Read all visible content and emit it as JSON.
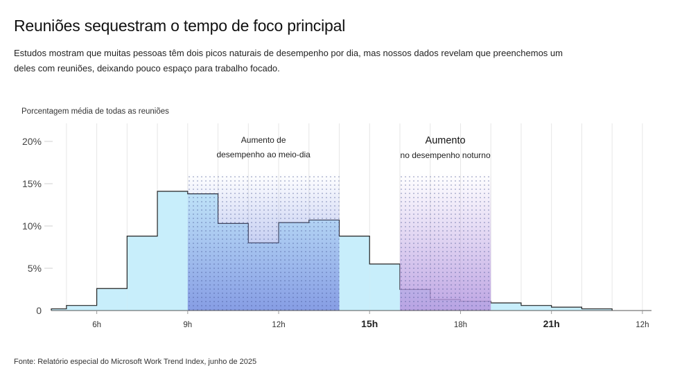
{
  "title": "Reuniões sequestram o tempo de foco principal",
  "subtitle": "Estudos mostram que muitas pessoas têm dois picos naturais de desempenho por dia, mas nossos dados revelam que preenchemos um deles com reuniões, deixando pouco espaço para trabalho focado.",
  "footer": "Fonte: Relatório especial do Microsoft Work Trend Index, junho de 2025",
  "colors": {
    "bar_fill": "#c8eefb",
    "step_line": "#222222",
    "midday_region": "#7b8fe0",
    "evening_region": "#b79be0",
    "grid": "#e6e6e6"
  },
  "chart_data": {
    "type": "bar",
    "title": "Reuniões sequestram o tempo de foco principal",
    "ylabel": "Porcentagem média de todas as reuniões",
    "xlabel": "",
    "ylim": [
      0,
      20
    ],
    "xlim": [
      4.5,
      24.3
    ],
    "yticks": [
      {
        "value": 0,
        "label": "0"
      },
      {
        "value": 5,
        "label": "5%"
      },
      {
        "value": 10,
        "label": "10%"
      },
      {
        "value": 15,
        "label": "15%"
      },
      {
        "value": 20,
        "label": "20%"
      }
    ],
    "xticks": [
      {
        "value": 6,
        "label": "6h",
        "emphasis": false
      },
      {
        "value": 9,
        "label": "9h",
        "emphasis": false
      },
      {
        "value": 12,
        "label": "12h",
        "emphasis": false
      },
      {
        "value": 15,
        "label": "15h",
        "emphasis": true
      },
      {
        "value": 18,
        "label": "18h",
        "emphasis": false
      },
      {
        "value": 21,
        "label": "21h",
        "emphasis": true
      },
      {
        "value": 24,
        "label": "12h",
        "emphasis": false
      }
    ],
    "bin_width_hours": 1,
    "bins": [
      {
        "start": 4.5,
        "value": 0.2
      },
      {
        "start": 5.0,
        "value": 0.6
      },
      {
        "start": 6.0,
        "value": 2.6
      },
      {
        "start": 7.0,
        "value": 8.8
      },
      {
        "start": 8.0,
        "value": 14.1
      },
      {
        "start": 9.0,
        "value": 13.8
      },
      {
        "start": 10.0,
        "value": 10.3
      },
      {
        "start": 11.0,
        "value": 8.0
      },
      {
        "start": 12.0,
        "value": 10.4
      },
      {
        "start": 13.0,
        "value": 10.7
      },
      {
        "start": 14.0,
        "value": 8.8
      },
      {
        "start": 15.0,
        "value": 5.5
      },
      {
        "start": 16.0,
        "value": 2.5
      },
      {
        "start": 17.0,
        "value": 1.3
      },
      {
        "start": 18.0,
        "value": 1.1
      },
      {
        "start": 19.0,
        "value": 0.9
      },
      {
        "start": 20.0,
        "value": 0.6
      },
      {
        "start": 21.0,
        "value": 0.4
      },
      {
        "start": 22.0,
        "value": 0.2
      }
    ],
    "highlights": [
      {
        "name": "midday",
        "start": 9.0,
        "end": 14.0,
        "top": 16.2,
        "label_lines": [
          "Aumento de",
          "desempenho ao meio-dia"
        ]
      },
      {
        "name": "evening",
        "start": 16.0,
        "end": 19.0,
        "top": 16.2,
        "label_lines": [
          "Aumento",
          "no desempenho noturno"
        ]
      }
    ]
  }
}
